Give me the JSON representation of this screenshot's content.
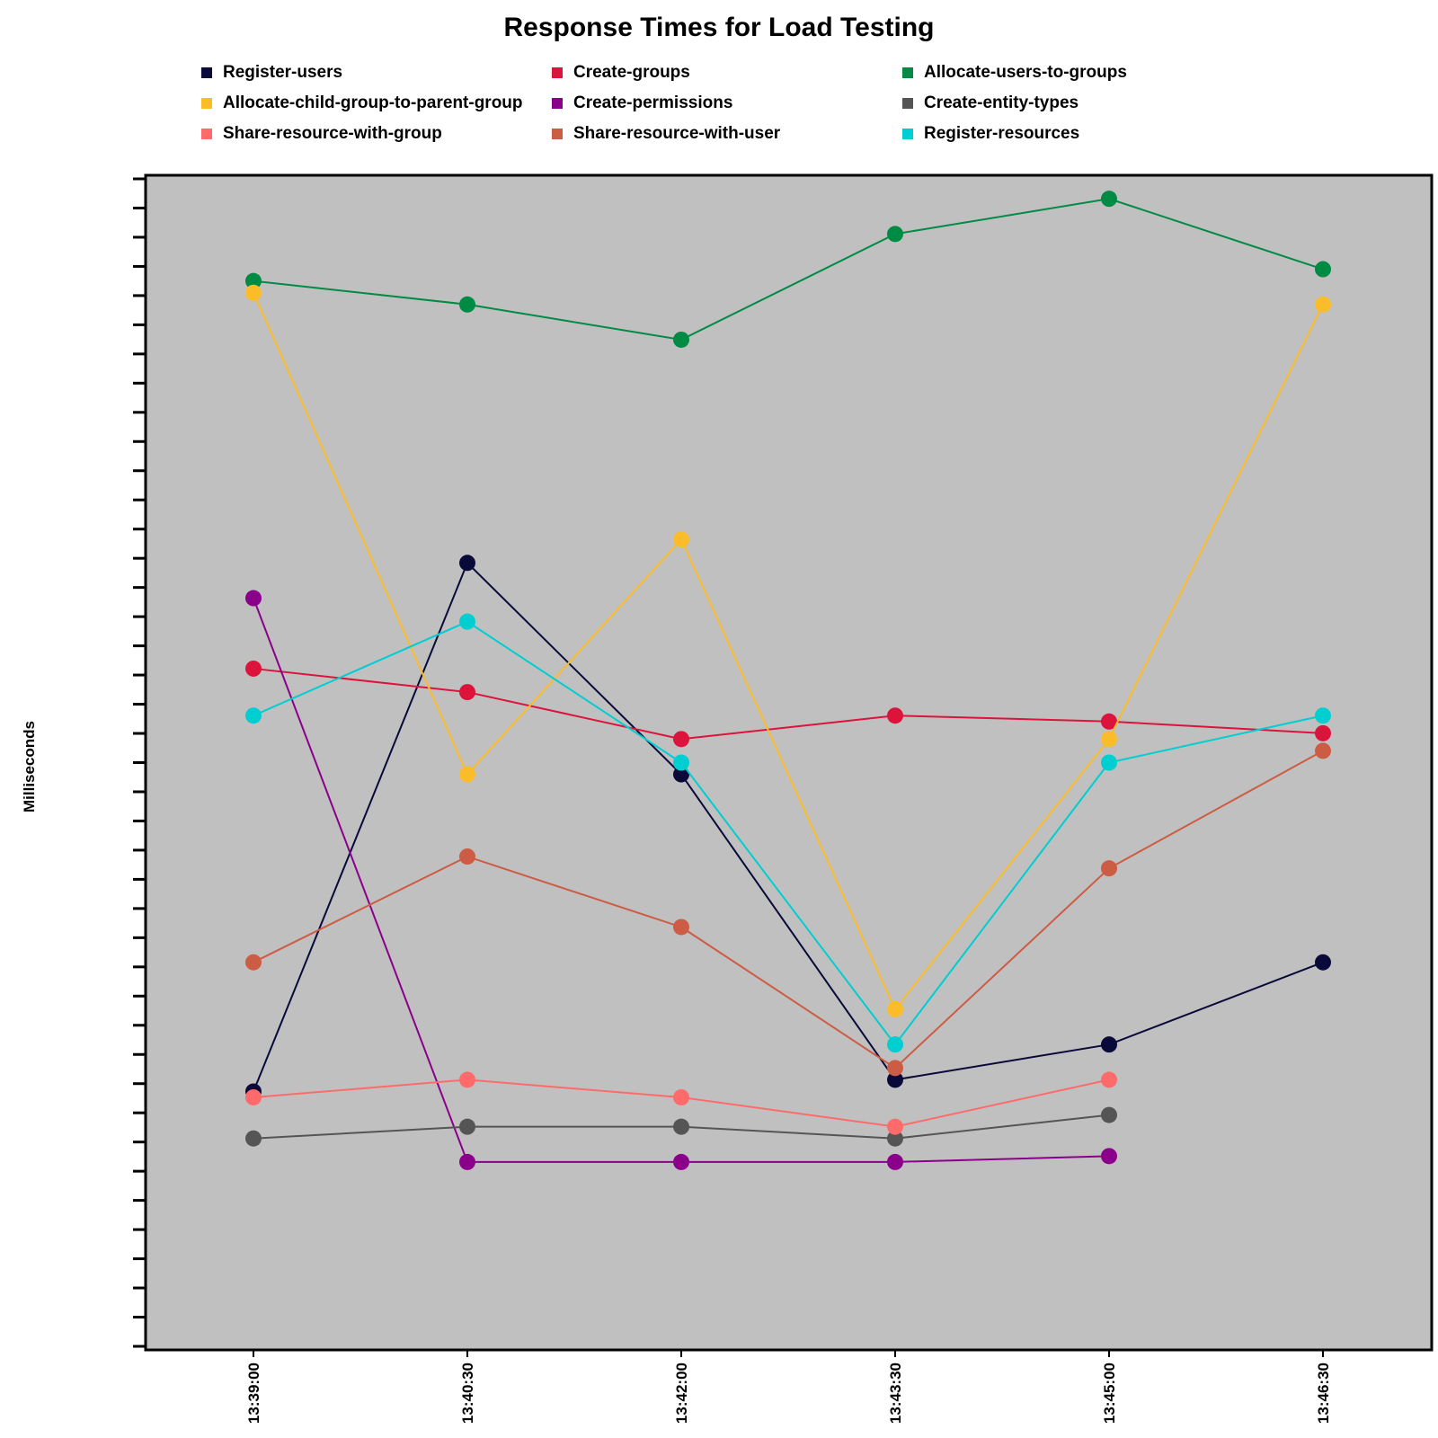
{
  "chart_data": {
    "type": "line",
    "title": "Response Times for Load Testing",
    "xlabel": "",
    "ylabel": "Milliseconds",
    "categories": [
      "13:39:00",
      "13:40:30",
      "13:42:00",
      "13:43:30",
      "13:45:00",
      "13:46:30"
    ],
    "ylim": [
      0,
      100
    ],
    "grid": false,
    "legend_position": "top",
    "plot_background": "#c0c0c0",
    "series": [
      {
        "name": "Register-users",
        "color": "#0a0a3a",
        "values": [
          22,
          67,
          49,
          23,
          26,
          33
        ]
      },
      {
        "name": "Create-groups",
        "color": "#dc143c",
        "values": [
          58,
          56,
          52,
          54,
          53.5,
          52.5
        ]
      },
      {
        "name": "Allocate-users-to-groups",
        "color": "#008b45",
        "values": [
          91,
          89,
          86,
          95,
          98,
          92
        ]
      },
      {
        "name": "Allocate-child-group-to-parent-group",
        "color": "#fbbc2a",
        "values": [
          90,
          49,
          69,
          29,
          52,
          89
        ]
      },
      {
        "name": "Create-permissions",
        "color": "#8b008b",
        "values": [
          64,
          16,
          16,
          16,
          16.5,
          null
        ]
      },
      {
        "name": "Create-entity-types",
        "color": "#555555",
        "values": [
          18,
          19,
          19,
          18,
          20,
          null
        ]
      },
      {
        "name": "Share-resource-with-group",
        "color": "#ff6b6b",
        "values": [
          21.5,
          23,
          21.5,
          19,
          23,
          null
        ]
      },
      {
        "name": "Share-resource-with-user",
        "color": "#cd5c45",
        "values": [
          33,
          42,
          36,
          24,
          41,
          51
        ]
      },
      {
        "name": "Register-resources",
        "color": "#00ced1",
        "values": [
          54,
          62,
          50,
          26,
          50,
          54
        ]
      }
    ]
  }
}
